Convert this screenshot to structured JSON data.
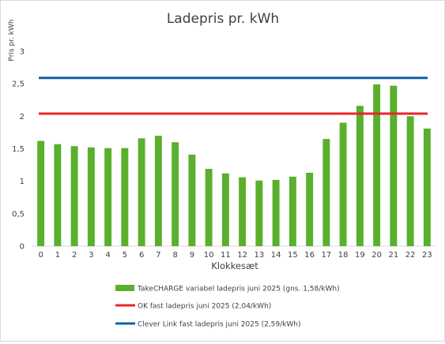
{
  "chart_data": {
    "type": "bar",
    "title": "Ladepris pr. kWh",
    "xlabel": "Klokkesæt",
    "ylabel": "Pris pr. kWh",
    "ylim": [
      0,
      3
    ],
    "yticks": [
      "0",
      "0,5",
      "1",
      "1,5",
      "2",
      "2,5",
      "3"
    ],
    "ytick_values": [
      0,
      0.5,
      1,
      1.5,
      2,
      2.5,
      3
    ],
    "grid": false,
    "legend_position": "bottom",
    "categories": [
      "0",
      "1",
      "2",
      "3",
      "4",
      "5",
      "6",
      "7",
      "8",
      "9",
      "10",
      "11",
      "12",
      "13",
      "14",
      "15",
      "16",
      "17",
      "18",
      "19",
      "20",
      "21",
      "22",
      "23"
    ],
    "series": [
      {
        "name": "TakeCHARGE variabel ladepris juni 2025 (gns. 1,58/kWh)",
        "type": "bar",
        "color": "#5aaf2d",
        "values": [
          1.62,
          1.57,
          1.54,
          1.52,
          1.51,
          1.51,
          1.66,
          1.7,
          1.6,
          1.41,
          1.19,
          1.12,
          1.06,
          1.01,
          1.02,
          1.07,
          1.13,
          1.65,
          1.9,
          2.16,
          2.49,
          2.47,
          2.0,
          1.81
        ]
      },
      {
        "name": "OK fast ladepris juni 2025 (2,04/kWh)",
        "type": "line",
        "color": "#e8262a",
        "value": 2.04
      },
      {
        "name": "Clever Link fast ladepris juni 2025 (2,59/kWh)",
        "type": "line",
        "color": "#0f62a8",
        "value": 2.59
      }
    ]
  }
}
